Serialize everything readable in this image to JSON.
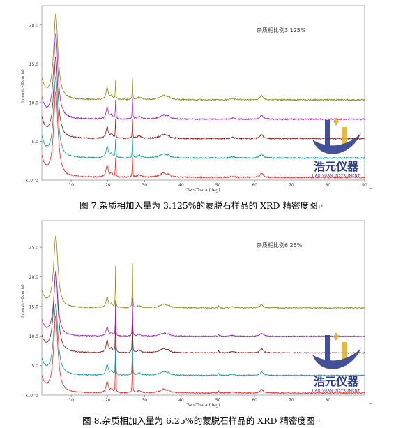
{
  "figures": [
    {
      "caption": "图 7.杂质相加入量为 3.125%的蒙脱石样品的 XRD 精密度图",
      "annotation": "杂质相比例3.125%",
      "return_mark": "↵"
    },
    {
      "caption": "图 8.杂质相加入量为 6.25%的蒙脱石样品的 XRD 精密度图",
      "annotation": "杂质相比例6.25%",
      "return_mark": "↵"
    }
  ],
  "watermark": {
    "name": "浩元仪器",
    "subtitle": "HAO YUAN INSTRUMENT"
  },
  "colors": {
    "series": [
      "#ff2020",
      "#0f9a9a",
      "#8a1a1a",
      "#a020c0",
      "#8a8a10"
    ],
    "frame": "#999999",
    "watermark_blue": "#2a3a8c",
    "watermark_gold": "#e0b030"
  },
  "chart_data": [
    {
      "type": "line",
      "xlabel": "Two-Theta (deg)",
      "ylabel": "Intensity(Counts)",
      "y_multiplier": "x10^3",
      "xlim": [
        2,
        90
      ],
      "xticks": [
        10,
        20,
        30,
        40,
        50,
        60,
        70,
        80,
        90
      ],
      "ylim": [
        0,
        22.5
      ],
      "yticks": [
        5.0,
        10.0,
        15.0,
        20.0
      ],
      "ytick_labels": [
        "5.0",
        "10.0",
        "15.0",
        "20.0"
      ],
      "offsets": [
        0,
        2.5,
        5.0,
        7.5,
        10.0
      ],
      "series": [
        {
          "offset": 0.0,
          "peak_max": 11.0
        },
        {
          "offset": 2.5,
          "peak_max": 13.0
        },
        {
          "offset": 5.0,
          "peak_max": 15.5
        },
        {
          "offset": 7.5,
          "peak_max": 18.5
        },
        {
          "offset": 10.0,
          "peak_max": 21.0
        }
      ],
      "peaks": [
        {
          "x": 5.8,
          "h": 1.0,
          "w": 0.7
        },
        {
          "x": 19.8,
          "h": 0.14,
          "w": 0.35
        },
        {
          "x": 21.0,
          "h": 0.05,
          "w": 0.4
        },
        {
          "x": 22.1,
          "h": 0.22,
          "w": 0.08
        },
        {
          "x": 26.7,
          "h": 0.24,
          "w": 0.08
        },
        {
          "x": 28.5,
          "h": 0.03,
          "w": 0.6
        },
        {
          "x": 35.2,
          "h": 0.05,
          "w": 1.2
        },
        {
          "x": 36.6,
          "h": 0.02,
          "w": 0.3
        },
        {
          "x": 54.0,
          "h": 0.015,
          "w": 0.6
        },
        {
          "x": 61.9,
          "h": 0.05,
          "w": 0.5
        }
      ]
    },
    {
      "type": "line",
      "xlabel": "Two-Theta (deg)",
      "ylabel": "Intensity(Counts)",
      "y_multiplier": "x10^3",
      "xlim": [
        2,
        90
      ],
      "xticks": [
        10,
        20,
        30,
        40,
        50,
        60,
        70,
        80
      ],
      "ylim": [
        0,
        29.5
      ],
      "yticks": [
        5.0,
        10.0,
        15.0,
        20.0,
        25.0
      ],
      "ytick_labels": [
        "5.0",
        "10.0",
        "15.0",
        "20.0",
        "25.0"
      ],
      "offsets": [
        0,
        3.0,
        6.8,
        9.6,
        14.4
      ],
      "series": [
        {
          "offset": 0.0,
          "peak_max": 13.0
        },
        {
          "offset": 3.0,
          "peak_max": 15.0
        },
        {
          "offset": 6.8,
          "peak_max": 20.5
        },
        {
          "offset": 9.6,
          "peak_max": 20.0
        },
        {
          "offset": 14.4,
          "peak_max": 26.5
        }
      ],
      "peaks": [
        {
          "x": 5.8,
          "h": 1.0,
          "w": 0.7
        },
        {
          "x": 19.8,
          "h": 0.15,
          "w": 0.35
        },
        {
          "x": 21.0,
          "h": 0.05,
          "w": 0.4
        },
        {
          "x": 22.1,
          "h": 0.58,
          "w": 0.07
        },
        {
          "x": 26.7,
          "h": 0.62,
          "w": 0.07
        },
        {
          "x": 28.5,
          "h": 0.03,
          "w": 0.6
        },
        {
          "x": 35.2,
          "h": 0.05,
          "w": 1.2
        },
        {
          "x": 36.6,
          "h": 0.02,
          "w": 0.3
        },
        {
          "x": 50.2,
          "h": 0.03,
          "w": 0.12
        },
        {
          "x": 54.0,
          "h": 0.015,
          "w": 0.6
        },
        {
          "x": 61.9,
          "h": 0.05,
          "w": 0.5
        }
      ]
    }
  ]
}
